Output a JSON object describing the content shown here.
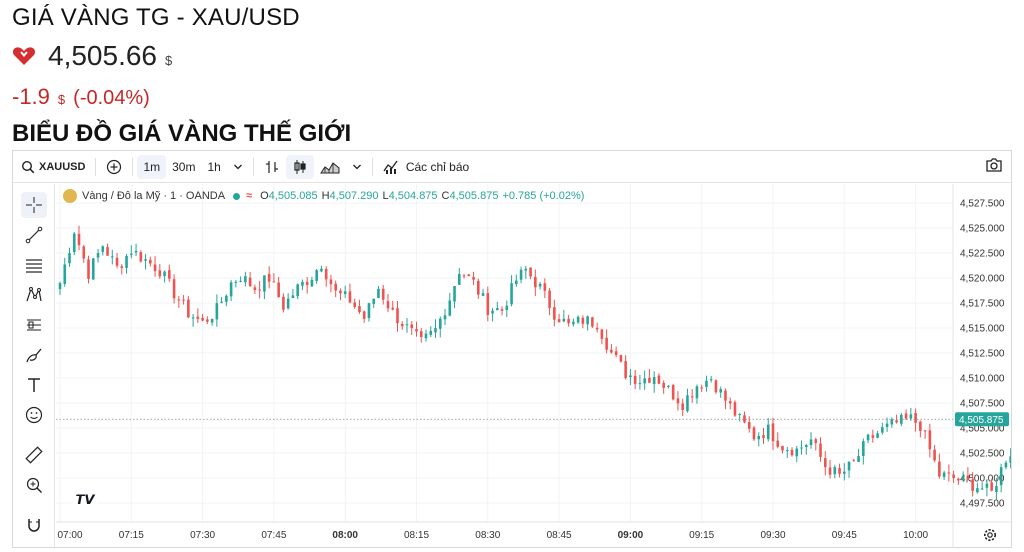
{
  "header": {
    "title": "GIÁ VÀNG TG - XAU/USD",
    "price": "4,505.66",
    "price_unit": "$",
    "change": "-1.9",
    "change_unit": "$",
    "change_pct": "(-0.04%)",
    "section_title": "BIỂU ĐỒ GIÁ VÀNG THẾ GIỚI",
    "down_color": "#c62828",
    "trend_icon": "heart-icon"
  },
  "toolbar": {
    "symbol": "XAUUSD",
    "intervals": [
      "1m",
      "30m",
      "1h"
    ],
    "active_interval": "1m",
    "indicators_label": "Các chỉ báo",
    "icons": [
      "search-icon",
      "add-compare-icon",
      "chevron-down-icon",
      "bar-style-icon",
      "candles-icon",
      "area-chart-icon",
      "indicators-icon",
      "camera-icon"
    ]
  },
  "sidebar": {
    "tools": [
      "crosshair-icon",
      "trend-line-icon",
      "fib-lines-icon",
      "pattern-icon",
      "projection-icon",
      "brush-icon",
      "text-icon",
      "emoji-icon",
      "ruler-icon",
      "zoom-icon",
      "magnet-icon"
    ]
  },
  "legend": {
    "name": "Vàng / Đô la Mỹ · 1 · OANDA",
    "o_key": "O",
    "o_val": "4,505.085",
    "h_key": "H",
    "h_val": "4,507.290",
    "l_key": "L",
    "l_val": "4,504.875",
    "c_key": "C",
    "c_val": "4,505.875",
    "chg": "+0.785 (+0.02%)"
  },
  "chart_data": {
    "type": "candlestick",
    "symbol": "XAUUSD",
    "interval": "1m",
    "up_color": "#26a69a",
    "down_color": "#ef5350",
    "y_ticks": [
      "4,527.500",
      "4,525.000",
      "4,522.500",
      "4,520.000",
      "4,517.500",
      "4,515.000",
      "4,512.500",
      "4,510.000",
      "4,507.500",
      "4,505.000",
      "4,502.500",
      "4,500.000",
      "4,497.500"
    ],
    "ylim": [
      4495.5,
      4529.5
    ],
    "x_ticks": [
      "07:00",
      "07:15",
      "07:30",
      "07:45",
      "08:00",
      "08:15",
      "08:30",
      "08:45",
      "09:00",
      "09:15",
      "09:30",
      "09:45",
      "10:00"
    ],
    "bold_x_ticks": [
      "08:00",
      "09:00"
    ],
    "last_price": 4505.875,
    "last_price_label": "4,505.875",
    "close_path": [
      [
        0,
        4519.5
      ],
      [
        3,
        4524.8
      ],
      [
        6,
        4520.5
      ],
      [
        9,
        4523.3
      ],
      [
        12,
        4521.0
      ],
      [
        15,
        4522.8
      ],
      [
        18,
        4521.8
      ],
      [
        21,
        4520.8
      ],
      [
        24,
        4518.5
      ],
      [
        27,
        4516.5
      ],
      [
        30,
        4515.5
      ],
      [
        33,
        4516.8
      ],
      [
        36,
        4519.5
      ],
      [
        38,
        4520.2
      ],
      [
        41,
        4519.0
      ],
      [
        44,
        4520.0
      ],
      [
        47,
        4517.2
      ],
      [
        50,
        4519.0
      ],
      [
        53,
        4520.2
      ],
      [
        55,
        4521.5
      ],
      [
        58,
        4518.5
      ],
      [
        61,
        4517.8
      ],
      [
        64,
        4516.0
      ],
      [
        67,
        4519.0
      ],
      [
        70,
        4516.5
      ],
      [
        73,
        4515.0
      ],
      [
        76,
        4513.5
      ],
      [
        79,
        4514.8
      ],
      [
        82,
        4518.0
      ],
      [
        84,
        4520.8
      ],
      [
        87,
        4519.5
      ],
      [
        90,
        4517.0
      ],
      [
        93,
        4516.8
      ],
      [
        96,
        4519.8
      ],
      [
        98,
        4520.8
      ],
      [
        101,
        4519.0
      ],
      [
        104,
        4516.5
      ],
      [
        107,
        4515.2
      ],
      [
        110,
        4515.8
      ],
      [
        113,
        4515.5
      ],
      [
        116,
        4512.5
      ],
      [
        119,
        4510.5
      ],
      [
        122,
        4509.8
      ],
      [
        125,
        4510.3
      ],
      [
        128,
        4508.8
      ],
      [
        131,
        4507.5
      ],
      [
        134,
        4509.3
      ],
      [
        137,
        4510.0
      ],
      [
        140,
        4507.8
      ],
      [
        143,
        4505.8
      ],
      [
        146,
        4504.2
      ],
      [
        149,
        4504.8
      ],
      [
        152,
        4503.2
      ],
      [
        155,
        4502.8
      ],
      [
        158,
        4503.8
      ],
      [
        161,
        4501.2
      ],
      [
        164,
        4500.2
      ],
      [
        167,
        4501.5
      ],
      [
        170,
        4503.8
      ],
      [
        173,
        4504.8
      ],
      [
        176,
        4505.5
      ],
      [
        179,
        4505.9
      ],
      [
        181,
        4505.3
      ],
      [
        183,
        4502.8
      ],
      [
        185,
        4500.3
      ],
      [
        188,
        4500.0
      ],
      [
        191,
        4499.5
      ],
      [
        194,
        4499.0
      ],
      [
        196,
        4498.5
      ],
      [
        199,
        4502.0
      ],
      [
        202,
        4503.8
      ],
      [
        205,
        4505.0
      ],
      [
        208,
        4505.9
      ]
    ]
  }
}
